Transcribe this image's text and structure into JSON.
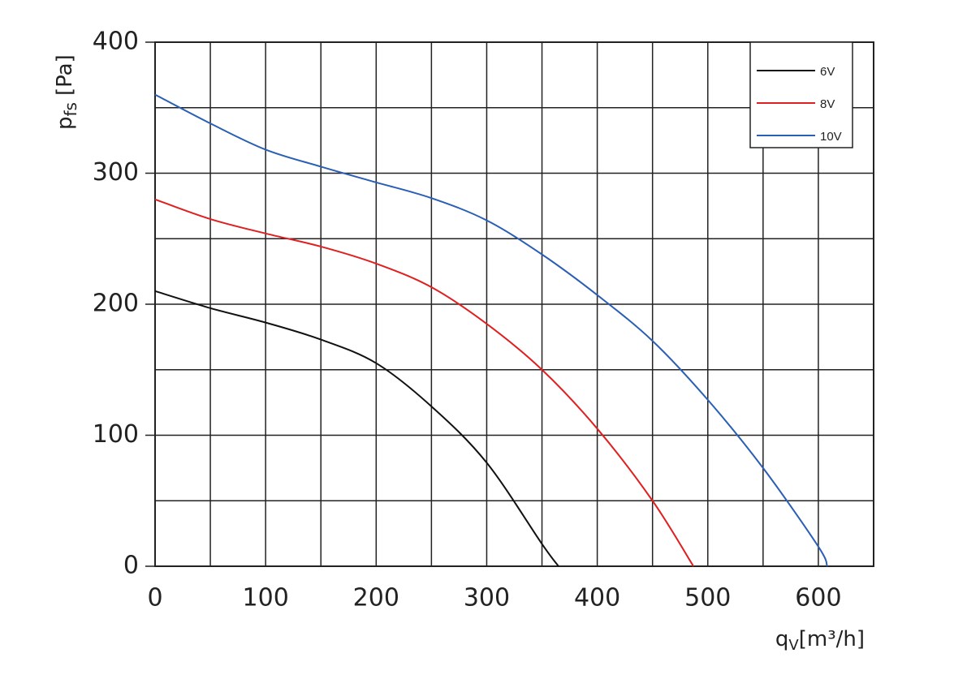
{
  "chart_data": {
    "type": "line",
    "xlabel": {
      "symbol": "q",
      "subscript": "V",
      "unit": "[m³/h]"
    },
    "ylabel": {
      "symbol": "p",
      "subscript": "fs",
      "unit": "[Pa]"
    },
    "xlim": [
      0,
      650
    ],
    "ylim": [
      0,
      400
    ],
    "xticks": [
      0,
      100,
      200,
      300,
      400,
      500,
      600
    ],
    "yticks": [
      0,
      100,
      200,
      300,
      400
    ],
    "x_minor_grid": [
      50,
      150,
      250,
      350,
      450,
      550,
      650
    ],
    "y_minor_grid": [
      50,
      150,
      250,
      350
    ],
    "grid": true,
    "legend": "upper right",
    "series": [
      {
        "name": "6V",
        "color": "#111111",
        "x": [
          0,
          50,
          100,
          150,
          200,
          250,
          300,
          350,
          365
        ],
        "values": [
          210,
          197,
          186,
          173,
          155,
          122,
          79,
          17,
          0
        ]
      },
      {
        "name": "8V",
        "color": "#e02020",
        "x": [
          0,
          50,
          100,
          150,
          200,
          250,
          300,
          350,
          400,
          450,
          487
        ],
        "values": [
          280,
          265,
          254,
          244,
          231,
          213,
          185,
          150,
          105,
          50,
          0
        ]
      },
      {
        "name": "10V",
        "color": "#2a5fb5",
        "x": [
          0,
          50,
          100,
          150,
          200,
          250,
          300,
          350,
          400,
          450,
          500,
          550,
          600,
          608
        ],
        "values": [
          360,
          338,
          318,
          305,
          293,
          281,
          264,
          238,
          207,
          172,
          127,
          75,
          15,
          0
        ]
      }
    ]
  }
}
